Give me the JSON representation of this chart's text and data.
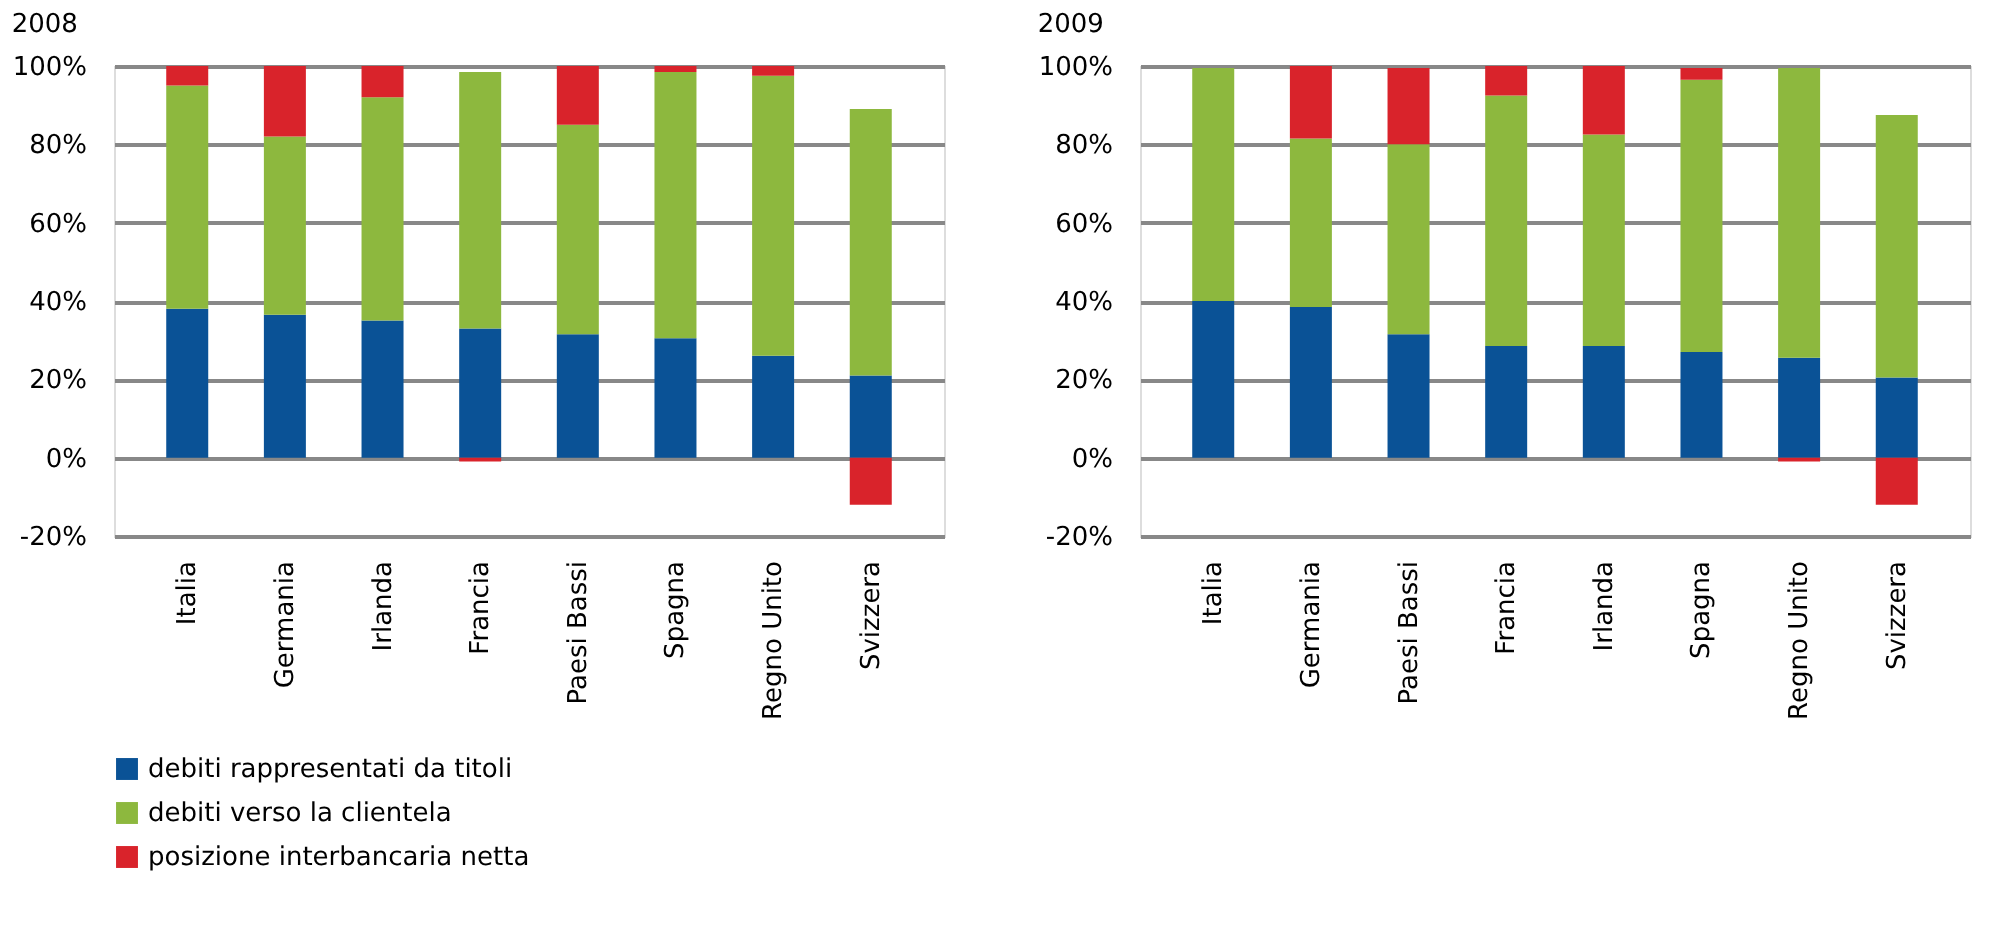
{
  "chart_data": [
    {
      "type": "bar",
      "title": "2008",
      "stacked": true,
      "grid": "y",
      "legend": "bottom",
      "categories": [
        "Italia",
        "Germania",
        "Irlanda",
        "Francia",
        "Paesi Bassi",
        "Spagna",
        "Regno Unito",
        "Svizzera"
      ],
      "ylim": [
        -20,
        100
      ],
      "yticks": [
        {
          "value": -20,
          "label": "-20%"
        },
        {
          "value": 0,
          "label": "0%"
        },
        {
          "value": 20,
          "label": "20%"
        },
        {
          "value": 40,
          "label": "40%"
        },
        {
          "value": 60,
          "label": "60%"
        },
        {
          "value": 80,
          "label": "80%"
        },
        {
          "value": 100,
          "label": "100%"
        }
      ],
      "series": [
        {
          "name": "debiti rappresentati da titoli",
          "color": "#0a5296",
          "values": [
            38,
            36.5,
            35,
            33,
            31.5,
            30.5,
            26,
            21
          ]
        },
        {
          "name": "debiti verso la clientela",
          "color": "#8db83e",
          "values": [
            57,
            45.5,
            57,
            65.5,
            53.5,
            68,
            71.5,
            68
          ]
        },
        {
          "name": "posizione interbancaria netta",
          "color": "#d9232b",
          "values": [
            5,
            18,
            8,
            -1,
            15,
            1.5,
            2.5,
            -12
          ]
        }
      ]
    },
    {
      "type": "bar",
      "title": "2009",
      "stacked": true,
      "grid": "y",
      "legend": "bottom",
      "categories": [
        "Italia",
        "Germania",
        "Paesi Bassi",
        "Francia",
        "Irlanda",
        "Spagna",
        "Regno Unito",
        "Svizzera"
      ],
      "ylim": [
        -20,
        100
      ],
      "yticks": [
        {
          "value": -20,
          "label": "-20%"
        },
        {
          "value": 0,
          "label": "0%"
        },
        {
          "value": 20,
          "label": "20%"
        },
        {
          "value": 40,
          "label": "40%"
        },
        {
          "value": 60,
          "label": "60%"
        },
        {
          "value": 80,
          "label": "80%"
        },
        {
          "value": 100,
          "label": "100%"
        }
      ],
      "series": [
        {
          "name": "debiti rappresentati da titoli",
          "color": "#0a5296",
          "values": [
            40,
            38.5,
            31.5,
            28.5,
            28.5,
            27,
            25.5,
            20.5
          ]
        },
        {
          "name": "debiti verso la clientela",
          "color": "#8db83e",
          "values": [
            59.5,
            43,
            48.5,
            64,
            54,
            69.5,
            74,
            67
          ]
        },
        {
          "name": "posizione interbancaria netta",
          "color": "#d9232b",
          "values": [
            0,
            18.5,
            19.5,
            7.5,
            17.5,
            3,
            -1,
            -12
          ]
        }
      ]
    }
  ]
}
